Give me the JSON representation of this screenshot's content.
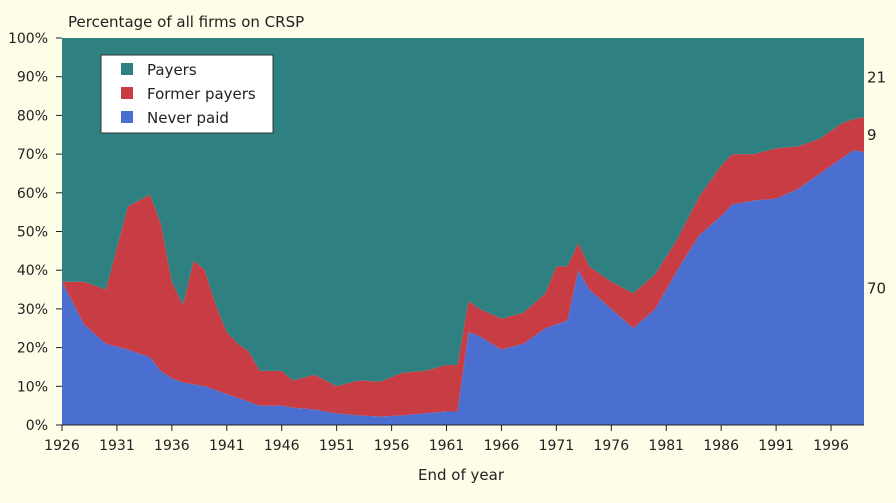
{
  "chart_data": {
    "type": "area",
    "stacked": true,
    "title": "Percentage of all firms on CRSP",
    "xlabel": "End of year",
    "ylabel": "",
    "xlim": [
      1926,
      1999
    ],
    "ylim": [
      0,
      100
    ],
    "x_ticks": [
      "1926",
      "1931",
      "1936",
      "1941",
      "1946",
      "1951",
      "1956",
      "1961",
      "1966",
      "1971",
      "1976",
      "1981",
      "1986",
      "1991",
      "1996"
    ],
    "y_ticks": [
      "0%",
      "10%",
      "20%",
      "30%",
      "40%",
      "50%",
      "60%",
      "70%",
      "80%",
      "90%",
      "100%"
    ],
    "legend_position": "top-left",
    "grid": false,
    "x": [
      1926,
      1928,
      1930,
      1932,
      1934,
      1935,
      1936,
      1937,
      1938,
      1939,
      1940,
      1941,
      1942,
      1943,
      1944,
      1946,
      1947,
      1949,
      1951,
      1953,
      1955,
      1957,
      1959,
      1961,
      1962,
      1963,
      1964,
      1966,
      1968,
      1970,
      1971,
      1972,
      1973,
      1974,
      1976,
      1978,
      1980,
      1982,
      1984,
      1986,
      1987,
      1989,
      1991,
      1993,
      1995,
      1997,
      1998,
      1999
    ],
    "series": [
      {
        "name": "Never paid",
        "color": "#4a6fd1",
        "values": [
          37,
          26,
          21,
          19.5,
          17.5,
          14,
          12,
          11,
          10.5,
          10,
          9,
          8,
          7,
          6,
          5,
          5,
          4.5,
          4,
          3,
          2.5,
          2.2,
          2.5,
          3,
          3.5,
          3.5,
          24,
          23,
          19.5,
          21,
          25,
          26,
          27,
          40,
          35,
          30,
          25,
          30,
          40,
          49,
          54,
          57,
          58,
          58.5,
          61,
          65,
          69,
          71,
          70.5
        ]
      },
      {
        "name": "Former payers",
        "color": "#c83c44",
        "values": [
          0,
          11,
          14,
          37,
          42,
          38,
          25,
          20,
          32,
          30,
          22,
          16,
          14,
          13,
          9,
          9,
          7,
          9,
          7,
          9,
          9,
          11,
          11,
          12,
          12,
          8,
          7,
          8,
          8,
          9,
          15,
          14,
          7,
          6,
          7,
          9,
          9,
          8,
          10,
          13,
          13,
          12,
          13,
          11,
          9,
          9,
          8,
          9
        ]
      },
      {
        "name": "Payers",
        "color": "#2e8081",
        "values": [
          63,
          63,
          65,
          43.5,
          40.5,
          48,
          63,
          69,
          57.5,
          60,
          69,
          76,
          79,
          81,
          86,
          86,
          88.5,
          87,
          90,
          88.5,
          88.8,
          86.5,
          86,
          84.5,
          84.5,
          68,
          70,
          72.5,
          71,
          66,
          59,
          59,
          53,
          59,
          63,
          66,
          61,
          52,
          41,
          33,
          30,
          30,
          28.5,
          28,
          26,
          22,
          21,
          20.5
        ]
      }
    ],
    "end_labels": [
      "21",
      "9",
      "70"
    ]
  }
}
